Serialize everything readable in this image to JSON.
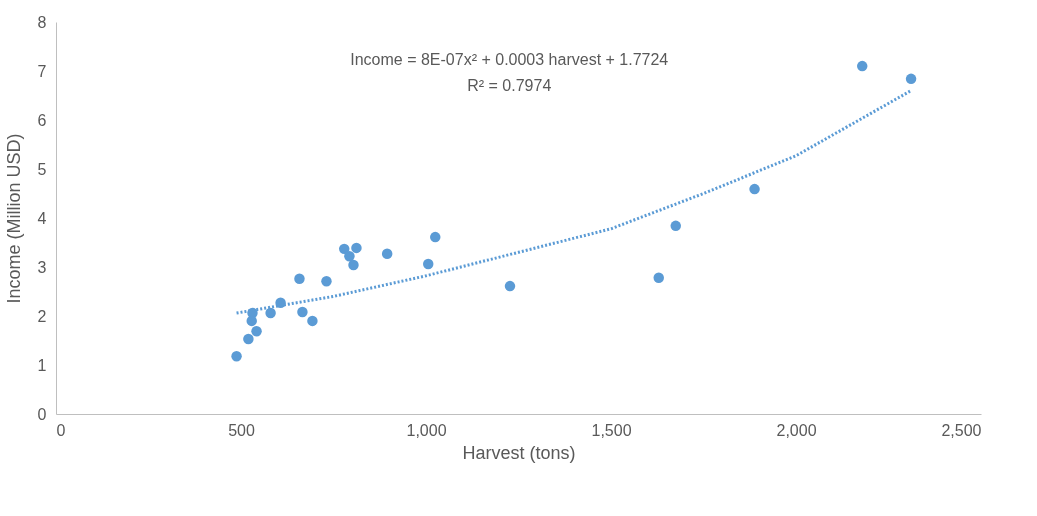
{
  "chart_data": {
    "type": "scatter",
    "xlabel": "Harvest (tons)",
    "ylabel": "Income (Million USD)",
    "annotations": [
      "Income = 8E-07x² + 0.0003 harvest + 1.7724",
      "R² = 0.7974"
    ],
    "xlim": [
      0,
      2500
    ],
    "xticks": [
      0,
      500,
      {
        "value": 1000,
        "label": "1,000"
      },
      {
        "value": 1500,
        "label": "1,500"
      },
      {
        "value": 2000,
        "label": "2,000"
      },
      {
        "value": 2500,
        "label": "2,500"
      }
    ],
    "ylim": [
      0,
      8
    ],
    "yticks": [
      0,
      1,
      2,
      3,
      4,
      5,
      6,
      7,
      8
    ],
    "grid": false,
    "marker": "circle",
    "series": [
      {
        "color": "#5b9bd5",
        "x": [
          488,
          520,
          531,
          529,
          542,
          580,
          607,
          658,
          666,
          693,
          731,
          779,
          793,
          804,
          812,
          895,
          1006,
          1025,
          1227,
          1629,
          1675,
          1888,
          2179,
          2311
        ],
        "values": [
          1.18,
          1.53,
          2.06,
          1.9,
          1.69,
          2.06,
          2.27,
          2.76,
          2.08,
          1.9,
          2.71,
          3.37,
          3.22,
          3.04,
          3.39,
          3.27,
          3.06,
          3.61,
          2.61,
          2.78,
          3.84,
          4.59,
          7.1,
          6.84
        ]
      },
      {
        "type": "line",
        "color": "#5b9bd5",
        "line_style": "dotted",
        "marker": "none",
        "x": [
          488,
          750,
          1000,
          1250,
          1500,
          1750,
          2000,
          2311
        ],
        "values": [
          2.06,
          2.4,
          2.82,
          3.3,
          3.78,
          4.5,
          5.27,
          6.6
        ]
      }
    ]
  }
}
